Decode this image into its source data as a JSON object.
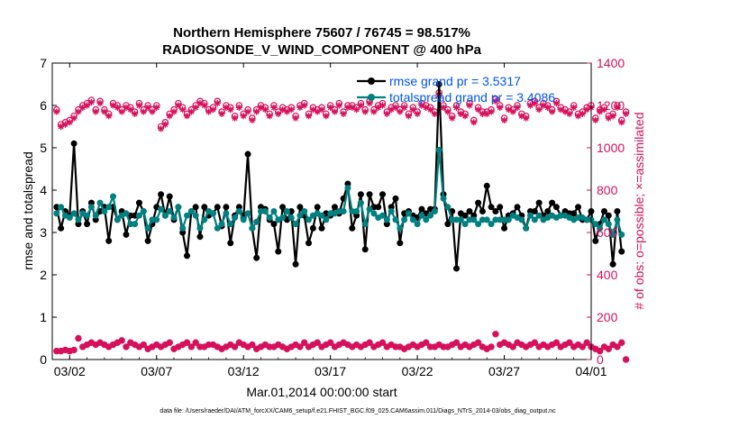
{
  "chart_data": {
    "type": "line",
    "title_line1": "Northern Hemisphere 75607 / 76745 = 98.517%",
    "title_line2": "RADIOSONDE_V_WIND_COMPONENT @ 400 hPa",
    "xlabel": "Mar.01,2014 00:00:00 start",
    "ylabel_left": "rmse and totalspread",
    "ylabel_right": "# of obs: o=possible; ×=assimilated",
    "footer": "data file: /Users/raeder/DAI/ATM_forcXX/CAM6_setup/f.e21.FHIST_BGC.f09_025.CAM6assim.011/Diags_NTrS_2014-03/obs_diag_output.nc",
    "xlim": [
      0,
      31
    ],
    "ylim_left": [
      0,
      7
    ],
    "ylim_right": [
      0,
      1400
    ],
    "x_ticks": [
      {
        "x": 1,
        "label": "03/02"
      },
      {
        "x": 6,
        "label": "03/07"
      },
      {
        "x": 11,
        "label": "03/12"
      },
      {
        "x": 16,
        "label": "03/17"
      },
      {
        "x": 21,
        "label": "03/22"
      },
      {
        "x": 26,
        "label": "03/27"
      },
      {
        "x": 31,
        "label": "04/01"
      }
    ],
    "y_ticks_left": [
      0,
      1,
      2,
      3,
      4,
      5,
      6,
      7
    ],
    "y_ticks_right": [
      0,
      200,
      400,
      600,
      800,
      1000,
      1200,
      1400
    ],
    "colors": {
      "rmse": "#000000",
      "spread": "#008080",
      "obs": "#d6115c",
      "legend_text": "#0055ee",
      "axis": "#000000"
    },
    "legend": [
      {
        "series": "rmse",
        "label": "rmse grand pr = 3.5317"
      },
      {
        "series": "spread",
        "label": "totalspread grand pr = 3.4086"
      }
    ],
    "x_start": 0.25,
    "x_step": 0.25,
    "series": [
      {
        "name": "rmse",
        "axis": "left",
        "values": [
          3.6,
          3.1,
          3.5,
          3.4,
          5.1,
          3.2,
          3.5,
          3.2,
          3.7,
          3.3,
          3.5,
          3.6,
          2.8,
          3.6,
          3.3,
          3.5,
          2.95,
          3.4,
          3.4,
          3.7,
          3.5,
          2.8,
          3.2,
          3.6,
          3.9,
          3.4,
          3.85,
          3.3,
          3.6,
          3.0,
          2.45,
          3.5,
          3.6,
          2.9,
          3.6,
          3.4,
          3.45,
          3.6,
          3.15,
          3.6,
          2.75,
          3.4,
          3.6,
          3.35,
          4.85,
          3.1,
          2.4,
          3.6,
          3.55,
          3.3,
          3.2,
          2.55,
          3.6,
          3.3,
          3.5,
          2.25,
          3.6,
          3.4,
          2.75,
          3.1,
          3.6,
          3.1,
          3.45,
          3.4,
          3.6,
          3.45,
          3.8,
          4.15,
          3.1,
          3.4,
          3.9,
          2.6,
          3.9,
          3.6,
          3.6,
          3.9,
          3.2,
          3.6,
          3.8,
          2.75,
          3.45,
          3.5,
          3.4,
          3.35,
          3.55,
          3.45,
          3.55,
          3.55,
          6.5,
          3.9,
          3.2,
          3.5,
          2.15,
          3.45,
          3.4,
          3.5,
          3.4,
          3.7,
          3.5,
          4.1,
          3.6,
          3.5,
          3.6,
          3.1,
          3.4,
          3.45,
          3.6,
          3.4,
          3.1,
          3.5,
          3.5,
          3.7,
          3.4,
          3.5,
          3.7,
          3.6,
          3.4,
          3.5,
          3.45,
          3.45,
          3.6,
          3.3,
          3.3,
          3.5,
          2.8,
          3.2,
          3.5,
          3.4,
          2.25,
          3.5,
          2.55
        ]
      },
      {
        "name": "spread",
        "axis": "left",
        "values": [
          3.45,
          3.6,
          3.4,
          3.35,
          3.45,
          3.3,
          3.45,
          3.4,
          3.6,
          3.4,
          3.7,
          3.5,
          3.6,
          3.85,
          3.3,
          3.4,
          3.45,
          3.2,
          3.2,
          3.4,
          3.5,
          3.1,
          3.3,
          3.3,
          3.55,
          3.4,
          3.5,
          3.35,
          3.6,
          3.1,
          3.4,
          3.5,
          3.4,
          3.1,
          3.3,
          3.5,
          3.45,
          3.1,
          3.2,
          3.45,
          3.2,
          3.35,
          3.5,
          3.3,
          3.45,
          3.1,
          3.25,
          3.5,
          3.5,
          3.35,
          3.5,
          3.3,
          3.35,
          3.5,
          3.35,
          3.2,
          3.4,
          3.5,
          3.3,
          3.4,
          3.45,
          3.4,
          3.3,
          3.45,
          3.45,
          3.5,
          3.5,
          4.05,
          3.5,
          3.5,
          3.7,
          3.2,
          3.55,
          3.45,
          3.35,
          3.4,
          3.3,
          3.5,
          3.3,
          3.1,
          3.3,
          3.45,
          3.3,
          3.2,
          3.4,
          3.3,
          3.4,
          3.5,
          4.95,
          3.8,
          3.6,
          3.3,
          3.3,
          3.3,
          3.2,
          3.3,
          3.3,
          3.2,
          3.3,
          3.3,
          3.2,
          3.3,
          3.3,
          3.3,
          3.3,
          3.4,
          3.35,
          3.3,
          3.1,
          3.4,
          3.3,
          3.4,
          3.3,
          3.35,
          3.4,
          3.35,
          3.4,
          3.4,
          3.35,
          3.3,
          3.35,
          3.35,
          3.3,
          3.3,
          3.2,
          3.1,
          3.3,
          3.2,
          2.95,
          3.3,
          2.95
        ]
      },
      {
        "name": "obs_possible",
        "axis": "right",
        "values": [
          1180,
          1110,
          1120,
          1130,
          1150,
          1180,
          1200,
          1210,
          1225,
          1180,
          1220,
          1180,
          1160,
          1210,
          1200,
          1180,
          1200,
          1190,
          1170,
          1210,
          1180,
          1200,
          1180,
          1200,
          1100,
          1120,
          1160,
          1180,
          1210,
          1190,
          1160,
          1180,
          1200,
          1220,
          1210,
          1180,
          1190,
          1220,
          1170,
          1200,
          1190,
          1150,
          1200,
          1160,
          1180,
          1140,
          1180,
          1200,
          1190,
          1160,
          1200,
          1170,
          1190,
          1180,
          1190,
          1150,
          1200,
          1210,
          1160,
          1190,
          1180,
          1190,
          1160,
          1200,
          1180,
          1210,
          1170,
          1200,
          1200,
          1190,
          1210,
          1180,
          1220,
          1180,
          1200,
          1210,
          1170,
          1190,
          1200,
          1180,
          1200,
          1160,
          1190,
          1170,
          1210,
          1200,
          1190,
          1170,
          1260,
          1200,
          1180,
          1150,
          1200,
          1170,
          1160,
          1210,
          1130,
          1190,
          1170,
          1170,
          1180,
          1230,
          1200,
          1140,
          1190,
          1180,
          1200,
          1160,
          1150,
          1210,
          1220,
          1190,
          1210,
          1200,
          1180,
          1220,
          1190,
          1180,
          1170,
          1200,
          1160,
          1170,
          1190,
          1200,
          1140,
          1180,
          1190,
          1150,
          1160,
          1200,
          1130,
          1170
        ]
      },
      {
        "name": "obs_assimilated",
        "axis": "right",
        "values": [
          1170,
          1100,
          1110,
          1120,
          1140,
          1170,
          1190,
          1200,
          1215,
          1170,
          1210,
          1170,
          1150,
          1200,
          1190,
          1170,
          1190,
          1180,
          1160,
          1200,
          1170,
          1190,
          1170,
          1190,
          1090,
          1110,
          1150,
          1170,
          1200,
          1180,
          1150,
          1170,
          1190,
          1210,
          1200,
          1170,
          1180,
          1210,
          1160,
          1190,
          1180,
          1140,
          1190,
          1150,
          1170,
          1130,
          1170,
          1190,
          1180,
          1150,
          1190,
          1160,
          1180,
          1170,
          1180,
          1140,
          1190,
          1200,
          1150,
          1180,
          1170,
          1180,
          1150,
          1190,
          1170,
          1200,
          1160,
          1190,
          1190,
          1180,
          1200,
          1170,
          1210,
          1170,
          1190,
          1200,
          1160,
          1180,
          1190,
          1170,
          1190,
          1150,
          1180,
          1160,
          1200,
          1190,
          1180,
          1160,
          1250,
          1190,
          1170,
          1140,
          1190,
          1160,
          1150,
          1200,
          1120,
          1180,
          1160,
          1160,
          1170,
          1220,
          1190,
          1130,
          1180,
          1170,
          1190,
          1150,
          1140,
          1200,
          1210,
          1180,
          1200,
          1190,
          1170,
          1210,
          1180,
          1170,
          1160,
          1190,
          1150,
          1160,
          1180,
          1190,
          1130,
          1170,
          1180,
          1140,
          1150,
          1190,
          1120,
          1160
        ]
      },
      {
        "name": "obs_low",
        "axis": "right",
        "values": [
          40,
          40,
          45,
          40,
          45,
          100,
          60,
          70,
          80,
          70,
          80,
          70,
          60,
          70,
          80,
          90,
          60,
          80,
          70,
          60,
          70,
          50,
          60,
          70,
          60,
          70,
          80,
          50,
          60,
          70,
          80,
          60,
          80,
          60,
          60,
          70,
          70,
          60,
          50,
          60,
          70,
          60,
          80,
          70,
          60,
          70,
          50,
          60,
          70,
          60,
          60,
          70,
          60,
          50,
          60,
          70,
          60,
          80,
          60,
          70,
          80,
          60,
          70,
          80,
          60,
          70,
          80,
          70,
          60,
          70,
          60,
          70,
          80,
          60,
          70,
          80,
          60,
          70,
          60,
          60,
          50,
          60,
          70,
          60,
          70,
          80,
          60,
          60,
          70,
          60,
          60,
          70,
          80,
          60,
          70,
          60,
          70,
          80,
          60,
          50,
          60,
          120,
          70,
          80,
          70,
          60,
          80,
          70,
          60,
          70,
          80,
          60,
          70,
          60,
          70,
          80,
          60,
          70,
          80,
          60,
          70,
          60,
          80,
          60,
          50,
          40,
          60,
          50,
          70,
          60,
          80,
          0
        ]
      }
    ]
  }
}
